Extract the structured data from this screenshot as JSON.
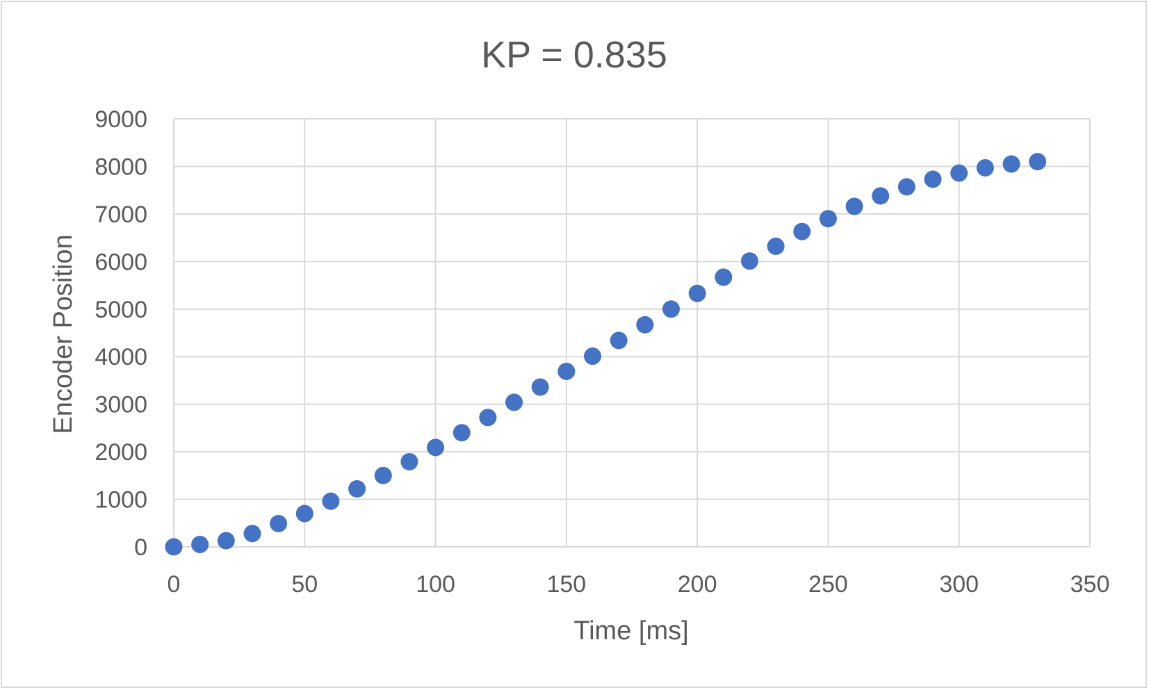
{
  "chart_data": {
    "type": "scatter",
    "title": "KP = 0.835",
    "xlabel": "Time [ms]",
    "ylabel": "Encoder Position",
    "xlim": [
      0,
      350
    ],
    "ylim": [
      0,
      9000
    ],
    "x_ticks": [
      "0",
      "50",
      "100",
      "150",
      "200",
      "250",
      "300",
      "350"
    ],
    "y_ticks": [
      "0",
      "1000",
      "2000",
      "3000",
      "4000",
      "5000",
      "6000",
      "7000",
      "8000",
      "9000"
    ],
    "grid": true,
    "legend": "none",
    "colors": {
      "marker": "#4472c4",
      "grid": "#d9d9d9",
      "text": "#595959"
    },
    "series": [
      {
        "x": [
          0,
          10,
          20,
          30,
          40,
          50,
          60,
          70,
          80,
          90,
          100,
          110,
          120,
          130,
          140,
          150,
          160,
          170,
          180,
          190,
          200,
          210,
          220,
          230,
          240,
          250,
          260,
          270,
          280,
          290,
          300,
          310,
          320,
          330
        ],
        "y": [
          0,
          50,
          130,
          280,
          490,
          700,
          960,
          1220,
          1500,
          1790,
          2090,
          2400,
          2720,
          3040,
          3360,
          3690,
          4010,
          4340,
          4670,
          5000,
          5330,
          5670,
          6010,
          6320,
          6630,
          6900,
          7160,
          7380,
          7570,
          7730,
          7860,
          7970,
          8050,
          8100
        ]
      }
    ]
  }
}
